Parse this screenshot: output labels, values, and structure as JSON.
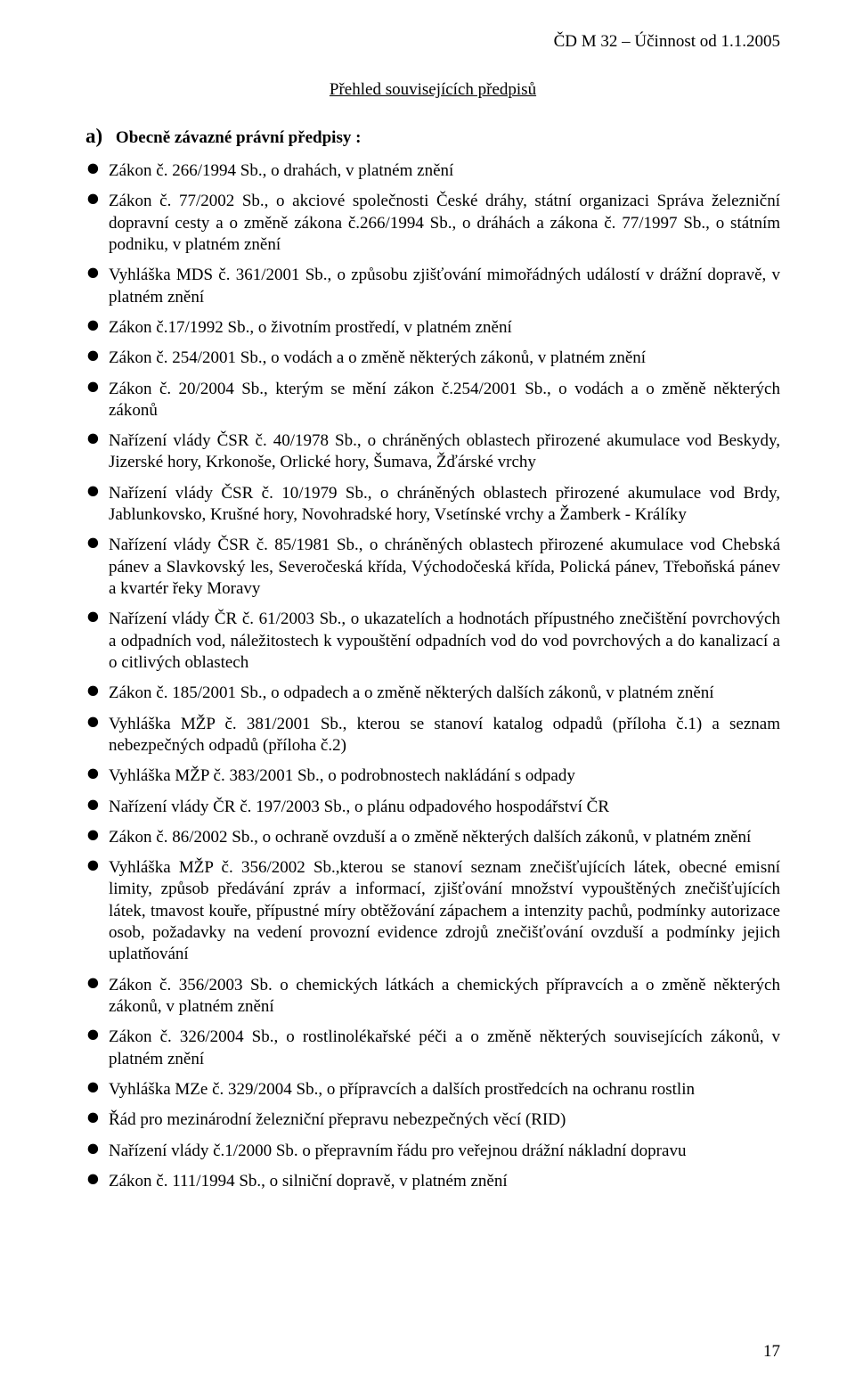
{
  "header": {
    "right": "ČD M 32 – Účinnost od 1.1.2005"
  },
  "title": "Přehled souvisejících předpisů",
  "section_a": {
    "letter": "a)",
    "heading": "Obecně závazné právní předpisy :"
  },
  "items": [
    "Zákon č. 266/1994 Sb., o drahách, v platném znění",
    "Zákon č. 77/2002 Sb., o akciové společnosti České dráhy, státní organizaci Správa železniční dopravní cesty a o změně zákona č.266/1994 Sb., o dráhách a zákona č. 77/1997 Sb., o státním podniku, v platném znění",
    "Vyhláška MDS č. 361/2001 Sb., o způsobu zjišťování mimořádných událostí v drážní dopravě, v platném znění",
    "Zákon č.17/1992 Sb., o životním prostředí,  v platném znění",
    "Zákon č. 254/2001 Sb., o vodách a o změně některých zákonů, v platném znění",
    " Zákon č. 20/2004 Sb., kterým se mění zákon č.254/2001 Sb., o vodách a o změně některých zákonů",
    "Nařízení vlády ČSR č. 40/1978 Sb., o chráněných oblastech přirozené akumulace vod Beskydy, Jizerské hory, Krkonoše, Orlické hory, Šumava, Žďárské vrchy",
    "Nařízení vlády ČSR č. 10/1979 Sb., o chráněných oblastech přirozené akumulace vod Brdy, Jablunkovsko, Krušné hory, Novohradské hory, Vsetínské vrchy a Žamberk - Králíky",
    "Nařízení vlády ČSR č. 85/1981 Sb., o chráněných oblastech přirozené akumulace vod Chebská pánev a Slavkovský les, Severočeská křída, Východočeská křída, Polická pánev, Třeboňská pánev a kvartér řeky Moravy",
    " Nařízení vlády ČR  č. 61/2003 Sb., o ukazatelích a hodnotách přípustného znečištění povrchových a odpadních vod, náležitostech k vypouštění odpadních vod do vod povrchových a do kanalizací a o citlivých oblastech",
    "Zákon č. 185/2001 Sb., o odpadech a o změně některých dalších zákonů, v platném znění",
    "Vyhláška MŽP č. 381/2001 Sb., kterou se stanoví katalog odpadů (příloha č.1) a seznam nebezpečných odpadů (příloha č.2)",
    "Vyhláška MŽP č. 383/2001 Sb., o podrobnostech nakládání s odpady",
    "Nařízení vlády ČR č. 197/2003 Sb., o plánu odpadového hospodářství ČR",
    "Zákon č. 86/2002 Sb., o ochraně ovzduší a o změně některých dalších zákonů, v platném znění",
    "Vyhláška MŽP č.  356/2002 Sb.,kterou se stanoví seznam znečišťujících látek, obecné emisní limity, způsob předávání zpráv a informací, zjišťování množství  vypouštěných znečišťujících látek, tmavost kouře, přípustné míry obtěžování zápachem a intenzity pachů, podmínky autorizace osob, požadavky na vedení provozní evidence zdrojů znečišťování ovzduší a podmínky jejich uplatňování",
    "Zákon č. 356/2003 Sb. o chemických látkách a chemických přípravcích a o změně některých zákonů, v platném znění",
    "Zákon č. 326/2004 Sb., o rostlinolékařské péči a o změně některých souvisejících zákonů, v platném znění",
    "Vyhláška MZe č. 329/2004 Sb., o přípravcích a dalších prostředcích na ochranu rostlin",
    "Řád pro mezinárodní  železniční přepravu nebezpečných věcí (RID)",
    "Nařízení vlády č.1/2000 Sb. o přepravním řádu pro veřejnou drážní nákladní dopravu",
    "Zákon č. 111/1994 Sb., o silniční dopravě, v platném znění"
  ],
  "page_number": "17"
}
